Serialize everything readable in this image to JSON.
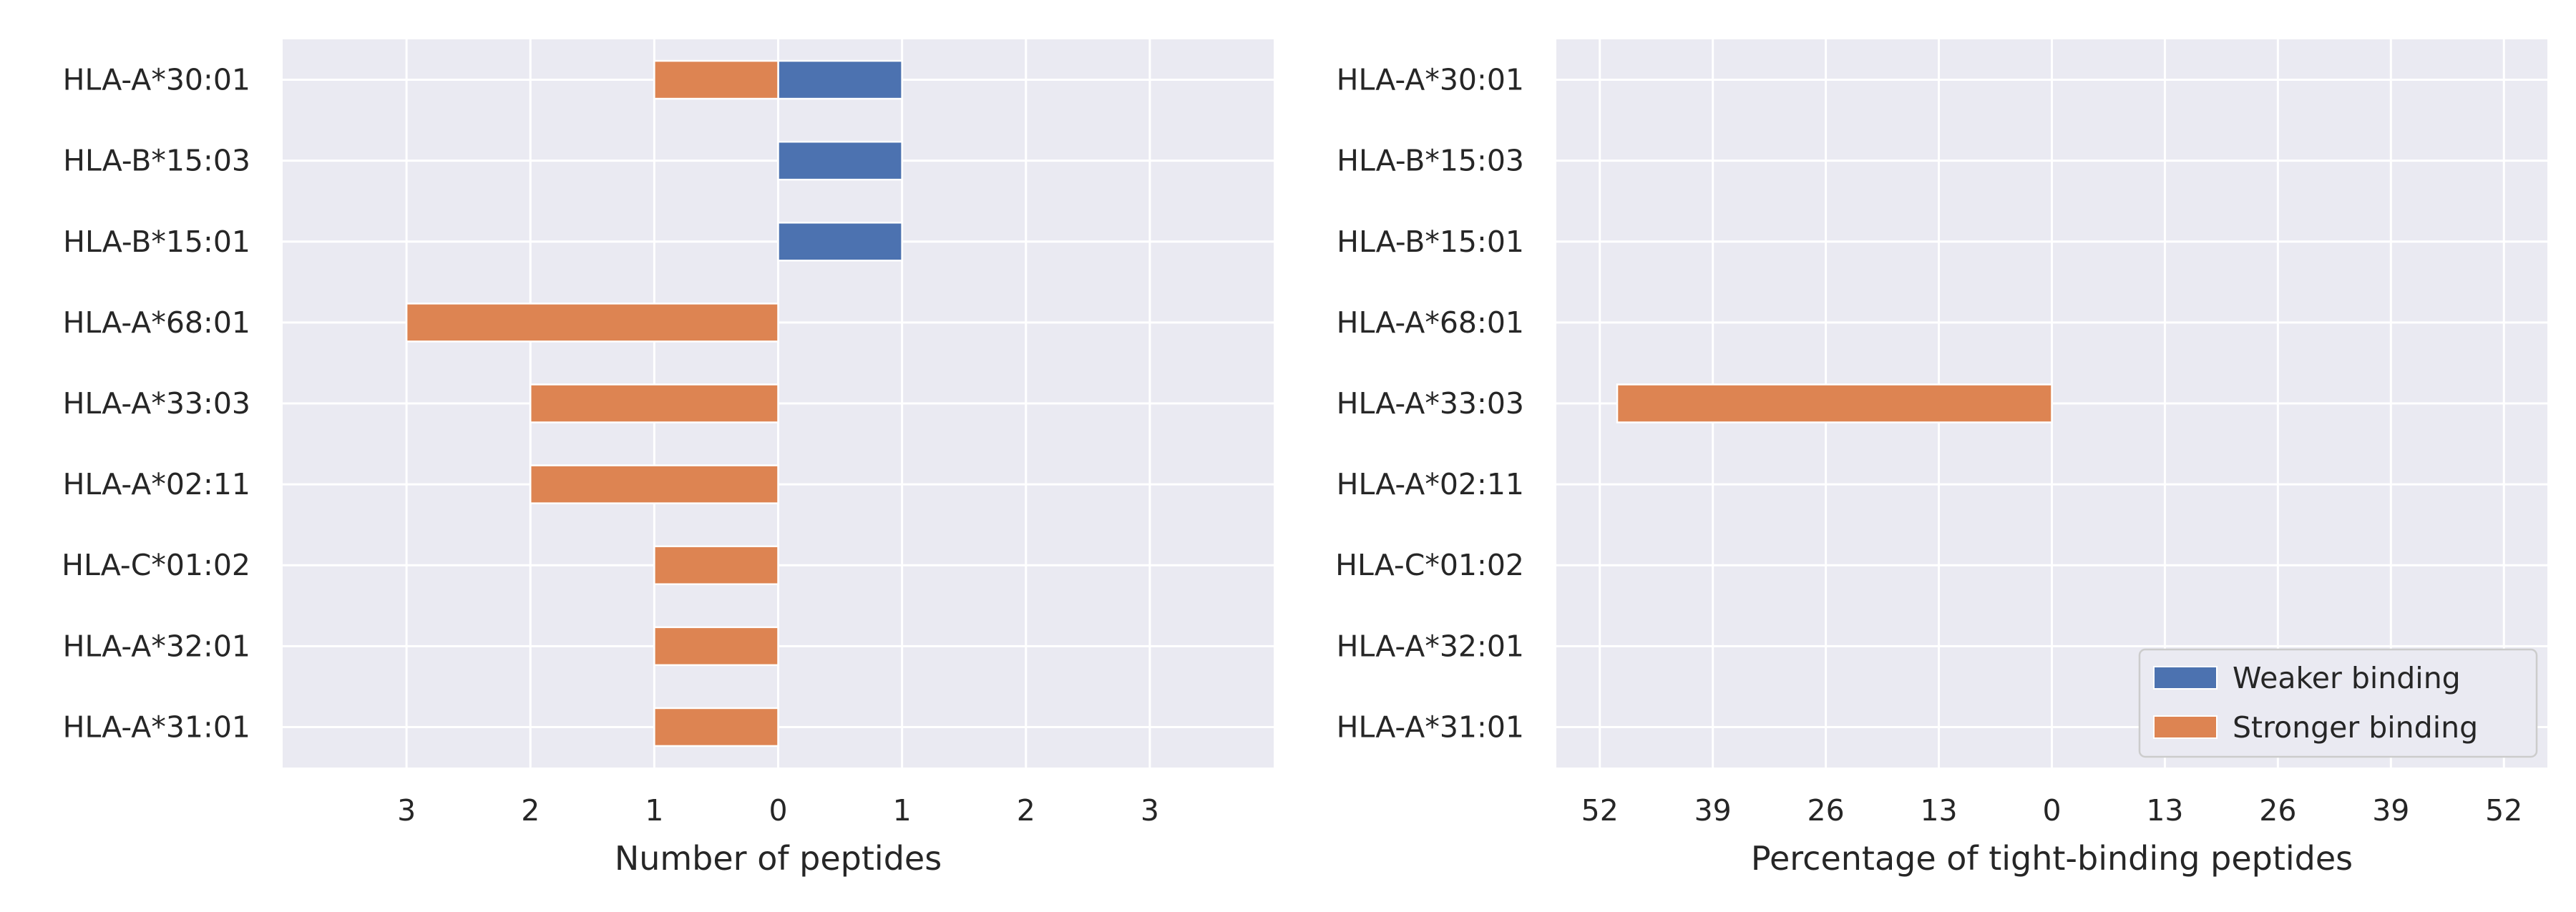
{
  "chart_data": [
    {
      "type": "bar",
      "orientation": "horizontal-diverging",
      "categories": [
        "HLA-A*30:01",
        "HLA-B*15:03",
        "HLA-B*15:01",
        "HLA-A*68:01",
        "HLA-A*33:03",
        "HLA-A*02:11",
        "HLA-C*01:02",
        "HLA-A*32:01",
        "HLA-A*31:01"
      ],
      "series": [
        {
          "name": "Weaker binding",
          "color": "#4c72b0",
          "direction": "right",
          "values": [
            1,
            1,
            1,
            0,
            0,
            0,
            0,
            0,
            0
          ]
        },
        {
          "name": "Stronger binding",
          "color": "#dd8452",
          "direction": "left",
          "values": [
            1,
            0,
            0,
            3,
            2,
            2,
            1,
            1,
            1
          ]
        }
      ],
      "xlabel": "Number of peptides",
      "xlim": [
        -4,
        4
      ],
      "xticks": [
        -3,
        -2,
        -1,
        0,
        1,
        2,
        3
      ],
      "xtick_labels": [
        "3",
        "2",
        "1",
        "0",
        "1",
        "2",
        "3"
      ],
      "grid": true
    },
    {
      "type": "bar",
      "orientation": "horizontal-diverging",
      "categories": [
        "HLA-A*30:01",
        "HLA-B*15:03",
        "HLA-B*15:01",
        "HLA-A*68:01",
        "HLA-A*33:03",
        "HLA-A*02:11",
        "HLA-C*01:02",
        "HLA-A*32:01",
        "HLA-A*31:01"
      ],
      "series": [
        {
          "name": "Weaker binding",
          "color": "#4c72b0",
          "direction": "right",
          "values": [
            0,
            0,
            0,
            0,
            0,
            0,
            0,
            0,
            0
          ]
        },
        {
          "name": "Stronger binding",
          "color": "#dd8452",
          "direction": "left",
          "values": [
            0,
            0,
            0,
            0,
            50,
            0,
            0,
            0,
            0
          ]
        }
      ],
      "xlabel": "Percentage of tight-binding peptides",
      "xlim": [
        -57,
        57
      ],
      "xticks": [
        -52,
        -39,
        -26,
        -13,
        0,
        13,
        26,
        39,
        52
      ],
      "xtick_labels": [
        "52",
        "39",
        "26",
        "13",
        "0",
        "13",
        "26",
        "39",
        "52"
      ],
      "grid": true,
      "legend": {
        "placement": "bottom-right",
        "entries": [
          {
            "label": "Weaker binding",
            "color": "#4c72b0"
          },
          {
            "label": "Stronger binding",
            "color": "#dd8452"
          }
        ]
      }
    }
  ]
}
